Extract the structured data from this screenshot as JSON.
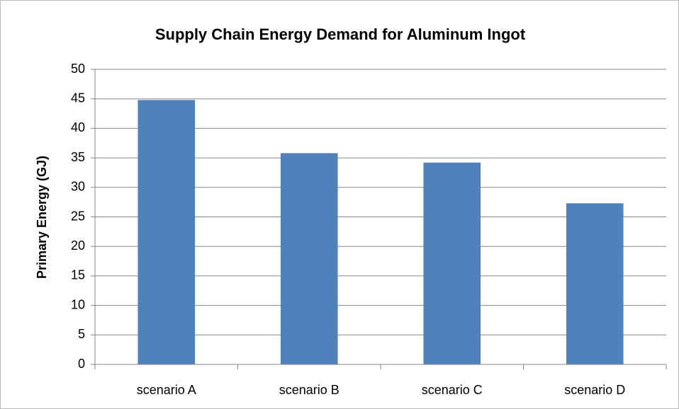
{
  "chart_data": {
    "type": "bar",
    "title": "Supply Chain Energy Demand for Aluminum Ingot",
    "y_label": "Primary Energy (GJ)",
    "categories": [
      "scenario A",
      "scenario B",
      "scenario C",
      "scenario D"
    ],
    "values": [
      44.8,
      35.8,
      34.2,
      27.3
    ],
    "color": "#4f81bd",
    "ylim": [
      0,
      50
    ],
    "yticks": [
      0,
      5,
      10,
      15,
      20,
      25,
      30,
      35,
      40,
      45,
      50
    ],
    "grid": true
  }
}
